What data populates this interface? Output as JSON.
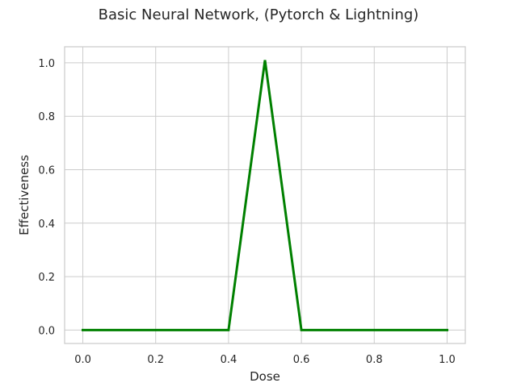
{
  "chart_data": {
    "type": "line",
    "title": "Basic Neural Network, (Pytorch & Lightning)",
    "xlabel": "Dose",
    "ylabel": "Effectiveness",
    "xlim": [
      -0.05,
      1.05
    ],
    "ylim": [
      -0.05,
      1.06
    ],
    "xticks": [
      0.0,
      0.2,
      0.4,
      0.6,
      0.8,
      1.0
    ],
    "xtick_labels": [
      "0.0",
      "0.2",
      "0.4",
      "0.6",
      "0.8",
      "1.0"
    ],
    "yticks": [
      0.0,
      0.2,
      0.4,
      0.6,
      0.8,
      1.0
    ],
    "ytick_labels": [
      "0.0",
      "0.2",
      "0.4",
      "0.6",
      "0.8",
      "1.0"
    ],
    "grid": true,
    "series": [
      {
        "color": "#008000",
        "x": [
          0.0,
          0.1,
          0.2,
          0.3,
          0.4,
          0.5,
          0.6,
          0.7,
          0.8,
          0.9,
          1.0
        ],
        "y": [
          0.0,
          0.0,
          0.0,
          0.0,
          0.0,
          1.01,
          0.0,
          0.0,
          0.0,
          0.0,
          0.0
        ]
      }
    ]
  }
}
